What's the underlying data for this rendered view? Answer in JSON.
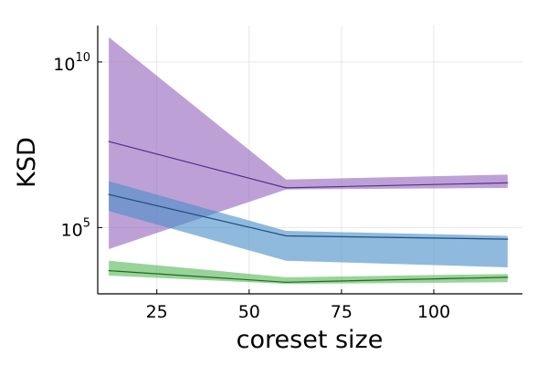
{
  "chart_data": {
    "type": "area",
    "title": "",
    "xlabel": "coreset size",
    "ylabel": "KSD",
    "x_ticks": [
      25,
      50,
      75,
      100
    ],
    "y_scale": "log10",
    "y_ticks": [
      {
        "base": "10",
        "exp": "5",
        "value": 100000
      },
      {
        "base": "10",
        "exp": "10",
        "value": 10000000000
      }
    ],
    "xlim": [
      9,
      124
    ],
    "ylim_log10": [
      3.0,
      11.1
    ],
    "grid": true,
    "legend": "none",
    "x": [
      12,
      60,
      120
    ],
    "series": [
      {
        "color": "#9467bd",
        "line_color": "#5b2e8c",
        "median_log10": [
          7.6,
          6.2,
          6.35
        ],
        "lower_log10": [
          4.35,
          6.15,
          6.2
        ],
        "upper_log10": [
          10.75,
          6.45,
          6.6
        ]
      },
      {
        "color": "#4a90c8",
        "line_color": "#1f4e80",
        "median_log10": [
          6.0,
          4.75,
          4.65
        ],
        "lower_log10": [
          5.5,
          4.0,
          3.8
        ],
        "upper_log10": [
          6.4,
          4.9,
          4.75
        ]
      },
      {
        "color": "#5cb85c",
        "line_color": "#1e6b1e",
        "median_log10": [
          3.7,
          3.35,
          3.5
        ],
        "lower_log10": [
          3.55,
          3.3,
          3.35
        ],
        "upper_log10": [
          4.0,
          3.5,
          3.6
        ]
      }
    ]
  }
}
